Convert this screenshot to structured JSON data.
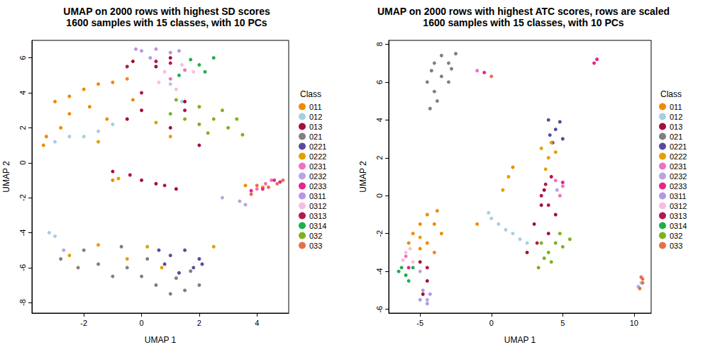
{
  "chart_data": [
    {
      "type": "scatter",
      "title": "UMAP on 2000 rows with highest SD scores",
      "subtitle": "1600 samples with 15 classes, with 10 PCs",
      "x_label": "UMAP 1",
      "y_label": "UMAP 2",
      "legend_title": "Class",
      "legend": "right",
      "xlim": [
        -3.8,
        5.1
      ],
      "xticks": [
        -2,
        0,
        2,
        4
      ],
      "ylim": [
        -8.6,
        7
      ],
      "yticks": [
        -8,
        -6,
        -4,
        -2,
        0,
        2,
        4,
        6
      ],
      "series": [
        {
          "name": "011",
          "color": "#F08A00",
          "values": [
            [
              -3.3,
              1.5
            ],
            [
              -3,
              3.5
            ],
            [
              -2.5,
              3.8
            ],
            [
              -2,
              4.2
            ],
            [
              -2.5,
              2.8
            ],
            [
              -1.8,
              3.2
            ],
            [
              -1.5,
              4.5
            ],
            [
              -1,
              4.6
            ],
            [
              -0.5,
              4.8
            ],
            [
              -1.2,
              2.5
            ],
            [
              -3.4,
              1.0
            ],
            [
              -2.8,
              2.0
            ],
            [
              -0.3,
              3.6
            ],
            [
              3.6,
              -1.3
            ],
            [
              4.2,
              -1.4
            ],
            [
              -1,
              -1.0
            ]
          ]
        },
        {
          "name": "012",
          "color": "#A6CEE3",
          "values": [
            [
              -3,
              1.2
            ],
            [
              -2.5,
              1.5
            ],
            [
              -2,
              1.5
            ],
            [
              -1.5,
              1.8
            ],
            [
              -1,
              2.2
            ],
            [
              -0.5,
              2.5
            ],
            [
              -3.2,
              -4.0
            ],
            [
              -3.0,
              -4.2
            ],
            [
              1.0,
              4.5
            ],
            [
              1.4,
              3.5
            ]
          ]
        },
        {
          "name": "013",
          "color": "#A50F3C",
          "values": [
            [
              -0.5,
              2.5
            ],
            [
              0,
              3
            ],
            [
              0.5,
              5.5
            ],
            [
              1,
              6
            ],
            [
              -1,
              -0.5
            ],
            [
              0,
              -1
            ],
            [
              0.5,
              -1.2
            ],
            [
              1.2,
              -1.5
            ],
            [
              1.5,
              3.5
            ],
            [
              2,
              1
            ],
            [
              1,
              2
            ],
            [
              -0.3,
              5.8
            ]
          ]
        },
        {
          "name": "021",
          "color": "#808080",
          "values": [
            [
              -2.8,
              -5.5
            ],
            [
              -2,
              -5
            ],
            [
              -1.5,
              -5.8
            ],
            [
              -1,
              -6.5
            ],
            [
              -0.5,
              -6
            ],
            [
              0,
              -6.5
            ],
            [
              0.5,
              -7
            ],
            [
              1,
              -7.5
            ],
            [
              1.5,
              -7.3
            ],
            [
              2,
              -7
            ],
            [
              1.2,
              -6.6
            ],
            [
              -2.2,
              -6
            ],
            [
              -0.7,
              -4.8
            ],
            [
              0.2,
              -5.5
            ],
            [
              1.7,
              -6.2
            ]
          ]
        },
        {
          "name": "0221",
          "color": "#5B4A9B",
          "values": [
            [
              0.8,
              -5.8
            ],
            [
              1,
              -5.3
            ],
            [
              1.5,
              -5
            ],
            [
              2,
              -5.5
            ],
            [
              1.3,
              -6.3
            ],
            [
              1.8,
              -6.0
            ],
            [
              0.6,
              -5.0
            ],
            [
              2.1,
              -5.8
            ]
          ]
        },
        {
          "name": "0222",
          "color": "#E6A000",
          "values": [
            [
              -2.5,
              -5.3
            ],
            [
              -1.5,
              -4.7
            ],
            [
              -0.5,
              -5.5
            ],
            [
              0.2,
              -4.8
            ],
            [
              0.7,
              -6.0
            ],
            [
              1,
              1.5
            ],
            [
              0.5,
              2.3
            ],
            [
              -1.5,
              1.2
            ],
            [
              -0.8,
              -0.9
            ],
            [
              2.5,
              -4.8
            ]
          ]
        },
        {
          "name": "0231",
          "color": "#F26FC4",
          "values": [
            [
              4.0,
              -1.5
            ],
            [
              4.3,
              -1.2
            ],
            [
              4.5,
              -1.0
            ],
            [
              1,
              4.8
            ],
            [
              1.5,
              5.3
            ]
          ]
        },
        {
          "name": "0232",
          "color": "#B9A3E3",
          "values": [
            [
              3.4,
              -2.2
            ],
            [
              3.6,
              -2.4
            ],
            [
              2.8,
              -2.0
            ],
            [
              -2.7,
              -5.0
            ]
          ]
        },
        {
          "name": "0233",
          "color": "#E8258A",
          "values": [
            [
              3.8,
              -1.6
            ],
            [
              4.2,
              -1.5
            ],
            [
              4.6,
              -1.0
            ],
            [
              4.8,
              -1.1
            ]
          ]
        },
        {
          "name": "0311",
          "color": "#B596E6",
          "values": [
            [
              0,
              6.4
            ],
            [
              0.5,
              6.5
            ],
            [
              1,
              6.3
            ],
            [
              0.3,
              6.0
            ],
            [
              1.3,
              6.4
            ],
            [
              -0.2,
              6.5
            ]
          ]
        },
        {
          "name": "0312",
          "color": "#F7BDE3",
          "values": [
            [
              0.6,
              4.6
            ],
            [
              1.2,
              4.2
            ],
            [
              1.8,
              5.2
            ],
            [
              0.8,
              5.2
            ],
            [
              1.4,
              5.6
            ]
          ]
        },
        {
          "name": "0313",
          "color": "#B3174E",
          "values": [
            [
              -0.5,
              5.5
            ],
            [
              0.5,
              5.8
            ],
            [
              1,
              5.7
            ],
            [
              0,
              4
            ],
            [
              1.5,
              3
            ],
            [
              -0.4,
              -0.7
            ],
            [
              0.8,
              -1.3
            ]
          ]
        },
        {
          "name": "0314",
          "color": "#1DB04A",
          "values": [
            [
              1.7,
              5.9
            ],
            [
              2,
              5.6
            ],
            [
              2.2,
              5.2
            ],
            [
              1.3,
              5.0
            ],
            [
              2.5,
              6.0
            ]
          ]
        },
        {
          "name": "032",
          "color": "#7FB21A",
          "values": [
            [
              1,
              2.8
            ],
            [
              1.5,
              2.5
            ],
            [
              2,
              2.2
            ],
            [
              2.5,
              2.5
            ],
            [
              3,
              2
            ],
            [
              3.5,
              1.6
            ],
            [
              2,
              3.2
            ],
            [
              2.8,
              3.0
            ],
            [
              1.2,
              3.6
            ],
            [
              2.3,
              1.7
            ],
            [
              3.3,
              2.5
            ]
          ]
        },
        {
          "name": "033",
          "color": "#E5704A",
          "values": [
            [
              4,
              -1.3
            ],
            [
              4.4,
              -1.4
            ],
            [
              4.7,
              -1.2
            ],
            [
              4.9,
              -1.0
            ],
            [
              3.8,
              -1.8
            ]
          ]
        }
      ]
    },
    {
      "type": "scatter",
      "title": "UMAP on 2000 rows with highest ATC scores, rows are scaled",
      "subtitle": "1600 samples with 15 classes, with 10 PCs",
      "x_label": "UMAP 1",
      "y_label": "UMAP 2",
      "legend_title": "Class",
      "legend": "right",
      "xlim": [
        -7.2,
        11.2
      ],
      "xticks": [
        -5,
        0,
        5,
        10
      ],
      "ylim": [
        -6.2,
        8.2
      ],
      "yticks": [
        -6,
        -4,
        -2,
        0,
        2,
        4,
        6,
        8
      ],
      "series": [
        {
          "name": "011",
          "color": "#F08A00",
          "values": [
            [
              -5.5,
              -2
            ],
            [
              -5,
              -1.5
            ],
            [
              -4.5,
              -1
            ],
            [
              -4,
              -1.5
            ],
            [
              -5,
              -2.8
            ],
            [
              -4.5,
              -2.5
            ],
            [
              -3.5,
              -2
            ],
            [
              -4,
              -3
            ],
            [
              -5.8,
              -2.5
            ],
            [
              -3.8,
              -0.8
            ],
            [
              1.5,
              1.5
            ],
            [
              -1,
              -1.5
            ]
          ]
        },
        {
          "name": "012",
          "color": "#A6CEE3",
          "values": [
            [
              0,
              -1.2
            ],
            [
              0.5,
              -1.5
            ],
            [
              1,
              -1.8
            ],
            [
              1.5,
              -2
            ],
            [
              2,
              -2.3
            ],
            [
              2.5,
              -2.5
            ],
            [
              -0.2,
              -0.9
            ],
            [
              10.5,
              -4.6
            ]
          ]
        },
        {
          "name": "013",
          "color": "#A50F3C",
          "values": [
            [
              3,
              -1.5
            ],
            [
              3.5,
              -0.5
            ],
            [
              4,
              -2
            ],
            [
              2.5,
              -3
            ],
            [
              -5,
              -3.5
            ],
            [
              -4.5,
              -4.5
            ],
            [
              3.7,
              0.3
            ],
            [
              4.5,
              -1
            ],
            [
              -4.8,
              -5.2
            ]
          ]
        },
        {
          "name": "021",
          "color": "#808080",
          "values": [
            [
              -4.5,
              6
            ],
            [
              -4,
              7
            ],
            [
              -3.5,
              7.4
            ],
            [
              -3,
              7
            ],
            [
              -4,
              5.5
            ],
            [
              -3.5,
              6.3
            ],
            [
              -2.5,
              7.5
            ],
            [
              -4.3,
              4.6
            ],
            [
              -3.8,
              5
            ],
            [
              -3,
              6
            ],
            [
              -2.8,
              6.7
            ],
            [
              -4.2,
              6.6
            ]
          ]
        },
        {
          "name": "0221",
          "color": "#5B4A9B",
          "values": [
            [
              4,
              4
            ],
            [
              4.5,
              3.5
            ],
            [
              5,
              3
            ],
            [
              4.3,
              2.8
            ],
            [
              4.8,
              3.9
            ],
            [
              4.1,
              3.2
            ]
          ]
        },
        {
          "name": "0222",
          "color": "#E6A000",
          "values": [
            [
              3.5,
              2.5
            ],
            [
              4,
              2
            ],
            [
              3.8,
              1.4
            ],
            [
              4.2,
              2.8
            ],
            [
              1.2,
              1.0
            ],
            [
              0.8,
              0.3
            ],
            [
              -5,
              -2.2
            ],
            [
              4.5,
              2.3
            ]
          ]
        },
        {
          "name": "0231",
          "color": "#F26FC4",
          "values": [
            [
              4.5,
              0.8
            ],
            [
              5,
              0.5
            ],
            [
              4.8,
              0
            ],
            [
              -1,
              6.6
            ],
            [
              -6,
              -3.2
            ]
          ]
        },
        {
          "name": "0232",
          "color": "#B9A3E3",
          "values": [
            [
              -5,
              -4
            ],
            [
              -4.5,
              -5.5
            ],
            [
              4.6,
              0.3
            ],
            [
              10.3,
              -4.8
            ]
          ]
        },
        {
          "name": "0233",
          "color": "#E8258A",
          "values": [
            [
              7.2,
              7.0
            ],
            [
              7.4,
              7.2
            ],
            [
              -0.5,
              6.5
            ],
            [
              5,
              0.7
            ],
            [
              -5.8,
              -3.8
            ]
          ]
        },
        {
          "name": "0311",
          "color": "#B596E6",
          "values": [
            [
              -5,
              -5.5
            ],
            [
              -4.5,
              -5.7
            ],
            [
              -4.8,
              -5
            ],
            [
              -4.3,
              -5.2
            ]
          ]
        },
        {
          "name": "0312",
          "color": "#F7BDE3",
          "values": [
            [
              -6,
              -3
            ],
            [
              -5.7,
              -2.8
            ],
            [
              -5.5,
              -3.5
            ],
            [
              -6.2,
              -3.4
            ]
          ]
        },
        {
          "name": "0313",
          "color": "#B3174E",
          "values": [
            [
              3.5,
              0
            ],
            [
              4,
              -0.5
            ],
            [
              3.8,
              0.6
            ],
            [
              4.2,
              1
            ],
            [
              -4.5,
              -3.8
            ],
            [
              3.2,
              -2.5
            ]
          ]
        },
        {
          "name": "0314",
          "color": "#1DB04A",
          "values": [
            [
              -6.3,
              -3.8
            ],
            [
              -6,
              -4.2
            ],
            [
              -5.5,
              -3.8
            ],
            [
              -5.8,
              -4.5
            ],
            [
              -6.5,
              -4
            ]
          ]
        },
        {
          "name": "032",
          "color": "#7FB21A",
          "values": [
            [
              3.5,
              -2.5
            ],
            [
              4,
              -3
            ],
            [
              4.5,
              -2.5
            ],
            [
              5,
              -2.7
            ],
            [
              4.2,
              -3.5
            ],
            [
              3.7,
              -3.3
            ],
            [
              5.5,
              -2.3
            ],
            [
              4.8,
              -2
            ],
            [
              3.3,
              -3.8
            ]
          ]
        },
        {
          "name": "033",
          "color": "#E5704A",
          "values": [
            [
              10.5,
              -4.3
            ],
            [
              10.6,
              -4.6
            ],
            [
              10.4,
              -4.9
            ],
            [
              0,
              6.3
            ],
            [
              10.6,
              -4.4
            ]
          ]
        }
      ]
    }
  ]
}
